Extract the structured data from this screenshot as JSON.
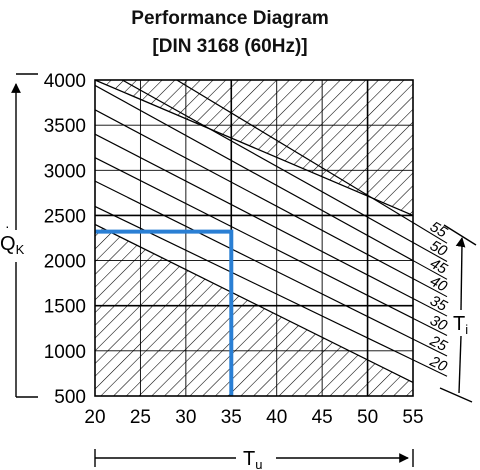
{
  "chart_data": {
    "type": "line",
    "title_line1": "Performance Diagram",
    "title_line2": "[DIN 3168 (60Hz)]",
    "xlabel": "T",
    "xlabel_sub": "u",
    "ylabel": "Q",
    "ylabel_sub": "K",
    "y2label": "T",
    "y2label_sub": "i",
    "xlim": [
      20,
      55
    ],
    "ylim": [
      500,
      4000
    ],
    "x_ticks": [
      "20",
      "25",
      "30",
      "35",
      "40",
      "45",
      "50",
      "55"
    ],
    "y_ticks": [
      "500",
      "1000",
      "1500",
      "2000",
      "2500",
      "3000",
      "3500",
      "4000"
    ],
    "grid": true,
    "grid_bold_x": [
      35,
      50
    ],
    "grid_bold_y": [
      1500,
      2500
    ],
    "envelope": {
      "upper": [
        [
          20,
          4000
        ],
        [
          55,
          2500
        ]
      ],
      "lower": [
        [
          20,
          2400
        ],
        [
          55,
          650
        ]
      ]
    },
    "series": [
      {
        "name": "20",
        "values": [
          [
            20,
            2600
          ],
          [
            55,
            900
          ]
        ]
      },
      {
        "name": "25",
        "values": [
          [
            20,
            2880
          ],
          [
            55,
            1130
          ]
        ]
      },
      {
        "name": "30",
        "values": [
          [
            20,
            3140
          ],
          [
            55,
            1360
          ]
        ]
      },
      {
        "name": "35",
        "values": [
          [
            20,
            3400
          ],
          [
            55,
            1580
          ]
        ]
      },
      {
        "name": "40",
        "values": [
          [
            20,
            3670
          ],
          [
            55,
            1800
          ]
        ]
      },
      {
        "name": "45",
        "values": [
          [
            20,
            3940
          ],
          [
            55,
            2000
          ]
        ]
      },
      {
        "name": "50",
        "values": [
          [
            23,
            4000
          ],
          [
            55,
            2200
          ]
        ]
      },
      {
        "name": "55",
        "values": [
          [
            29,
            4000
          ],
          [
            55,
            2420
          ]
        ]
      }
    ],
    "highlight": {
      "color": "#2a7fd4",
      "path": [
        [
          20,
          2320
        ],
        [
          35,
          2320
        ],
        [
          35,
          500
        ]
      ]
    }
  }
}
